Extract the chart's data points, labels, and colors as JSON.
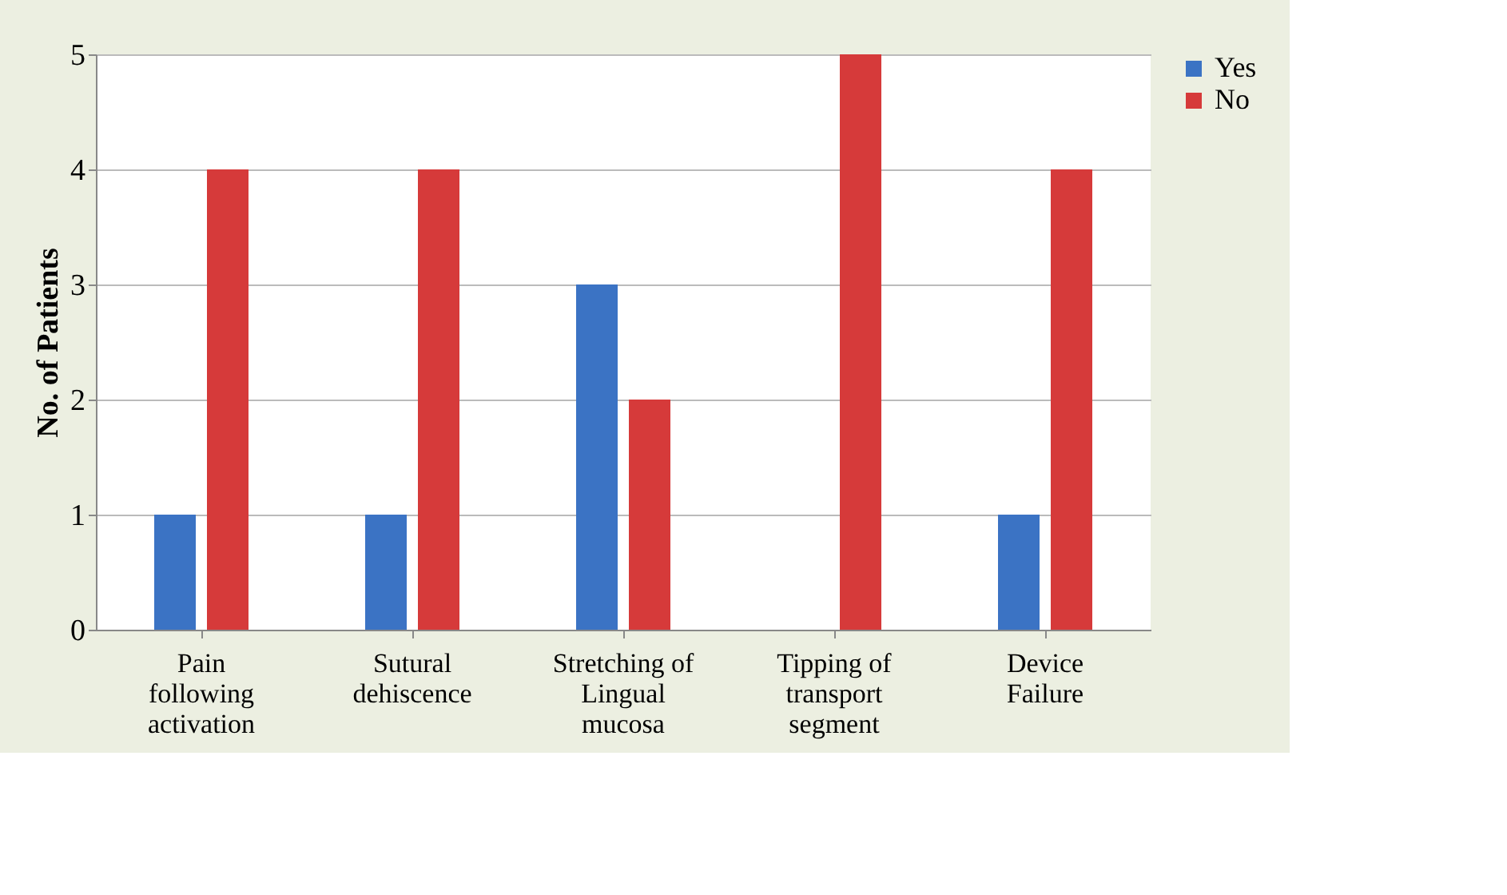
{
  "chart_data": {
    "type": "bar",
    "ylabel": "No. of Patients",
    "categories": [
      "Pain\nfollowing\nactivation",
      "Sutural\ndehiscence",
      "Stretching of\nLingual\nmucosa",
      "Tipping of\ntransport\nsegment",
      "Device\nFailure"
    ],
    "series": [
      {
        "name": "Yes",
        "color": "#3b73c4",
        "values": [
          1,
          1,
          3,
          0,
          1
        ]
      },
      {
        "name": "No",
        "color": "#d63a3a",
        "values": [
          4,
          4,
          2,
          5,
          4
        ]
      }
    ],
    "ylim": [
      0,
      5
    ],
    "yticks": [
      0,
      1,
      2,
      3,
      4,
      5
    ],
    "grid": "y",
    "legend": "right"
  }
}
